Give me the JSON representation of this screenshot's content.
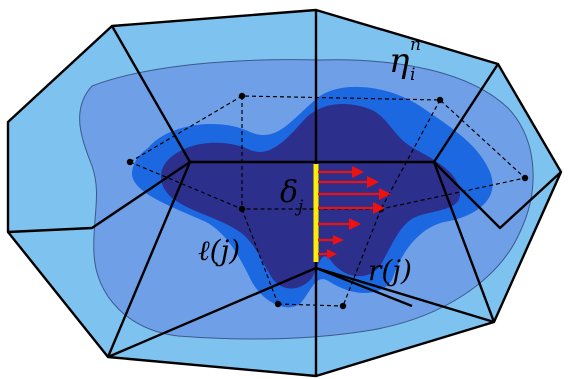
{
  "labels": {
    "eta_base": "η",
    "eta_sup": "n",
    "eta_sub": "i",
    "delta_base": "δ",
    "delta_sub": "j",
    "left_cell": "ℓ(j)",
    "right_cell": "r(j)"
  },
  "colors": {
    "outer_cell_fill": "#7ec2ef",
    "outer_region_fill": "#6f9fe6",
    "wet_region_fill": "#1c68e0",
    "deep_region_fill": "#2c2f8c",
    "interface_edge": "#ffee00",
    "flux_arrow": "#ee1111",
    "edges": "#000000"
  },
  "flux_arrow_count": 7
}
